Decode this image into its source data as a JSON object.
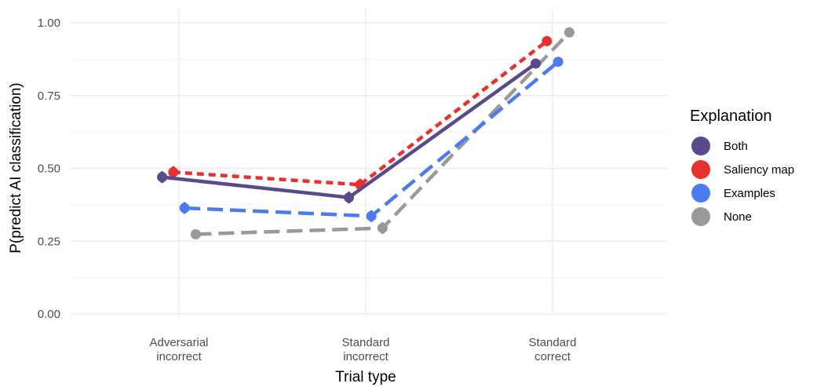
{
  "chart_data": {
    "type": "line",
    "xlabel": "Trial type",
    "ylabel": "P(predict AI classification)",
    "categories": [
      [
        "Adversarial",
        "incorrect"
      ],
      [
        "Standard",
        "incorrect"
      ],
      [
        "Standard",
        "correct"
      ]
    ],
    "y_ticks": [
      "0.00",
      "0.25",
      "0.50",
      "0.75",
      "1.00"
    ],
    "ylim": [
      0,
      1
    ],
    "grid": true,
    "legend": {
      "title": "Explanation",
      "position": "right"
    },
    "series": [
      {
        "name": "Both",
        "color": "#5b4a8b",
        "dash": "solid",
        "values": [
          0.47,
          0.4,
          0.86
        ],
        "errors": [
          0.02,
          0.02,
          0.0
        ],
        "dodge": -0.09
      },
      {
        "name": "Saliency map",
        "color": "#e8302f",
        "dash": "short",
        "values": [
          0.487,
          0.444,
          0.937
        ],
        "errors": [
          0.02,
          0.02,
          0.0
        ],
        "dodge": -0.03
      },
      {
        "name": "Examples",
        "color": "#4c7bef",
        "dash": "long",
        "values": [
          0.364,
          0.336,
          0.866
        ],
        "errors": [
          0.02,
          0.02,
          0.0
        ],
        "dodge": 0.03
      },
      {
        "name": "None",
        "color": "#999999",
        "dash": "long",
        "values": [
          0.274,
          0.295,
          0.967
        ],
        "errors": [
          0.015,
          0.02,
          0.0
        ],
        "dodge": 0.09
      }
    ]
  }
}
